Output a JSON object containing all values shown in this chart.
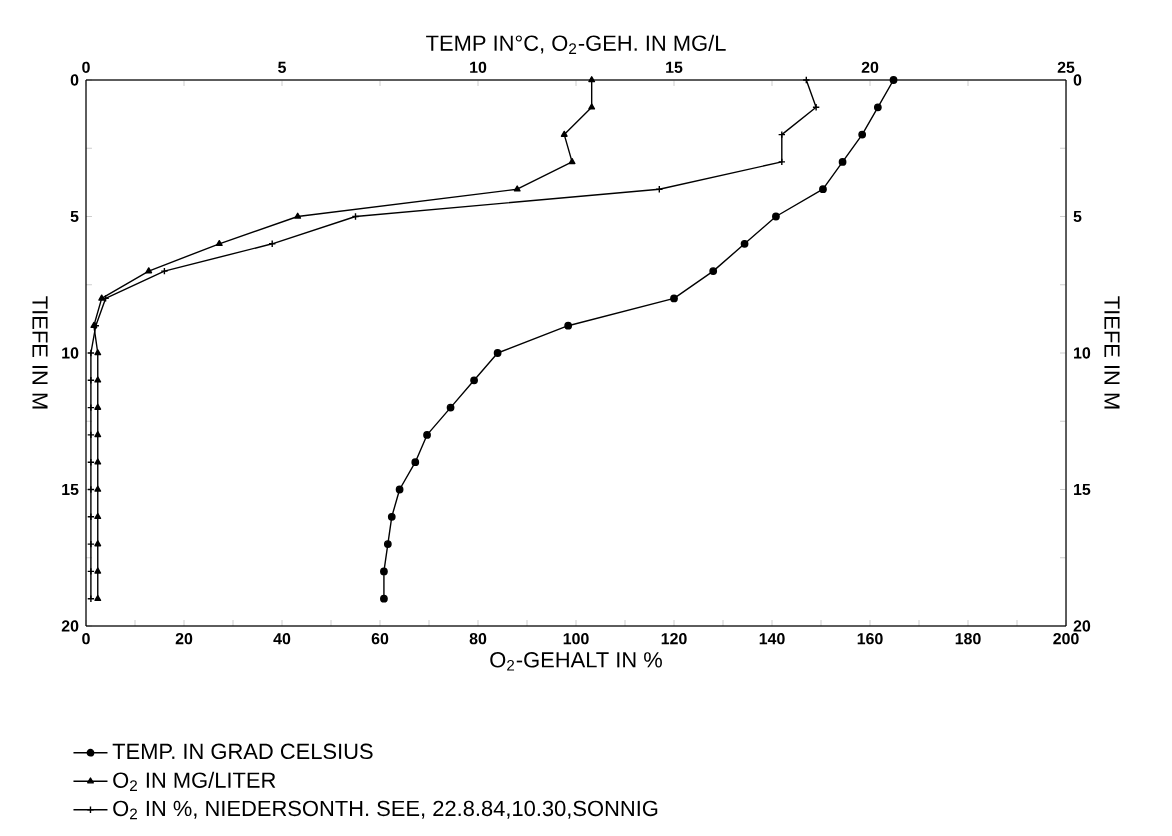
{
  "chart_data": {
    "type": "line",
    "x2label": "TEMP IN°C, O$_{2}$-GEH. IN MG/L",
    "xlabel": "O$_{2}$-GEHALT IN %",
    "ylabel": "TIEFE IN M",
    "y2label": "TIEFE IN M",
    "xlim": [
      0,
      200
    ],
    "xticks": [
      0,
      {
        "value": 10,
        "label": null
      },
      20,
      {
        "value": 30,
        "label": null
      },
      40,
      {
        "value": 50,
        "label": null
      },
      60,
      {
        "value": 70,
        "label": null
      },
      80,
      {
        "value": 90,
        "label": null
      },
      100,
      {
        "value": 110,
        "label": null
      },
      120,
      {
        "value": 130,
        "label": null
      },
      140,
      {
        "value": 150,
        "label": null
      },
      160,
      {
        "value": 170,
        "label": null
      },
      180,
      {
        "value": 190,
        "label": null
      },
      200
    ],
    "x2lim": [
      0,
      25
    ],
    "x2ticks": [
      0,
      {
        "value": 2.5,
        "label": null
      },
      5,
      {
        "value": 7.5,
        "label": null
      },
      10,
      {
        "value": 12.5,
        "label": null
      },
      15,
      {
        "value": 17.5,
        "label": null
      },
      20,
      {
        "value": 22.5,
        "label": null
      },
      25
    ],
    "ylim": [
      20,
      0
    ],
    "yticks": [
      0,
      {
        "value": 2.5,
        "label": null
      },
      5,
      {
        "value": 7.5,
        "label": null
      },
      10,
      {
        "value": 12.5,
        "label": null
      },
      15,
      {
        "value": 17.5,
        "label": null
      },
      20
    ],
    "y2lim": [
      20,
      0
    ],
    "y2ticks": [
      0,
      {
        "value": 2.5,
        "label": null
      },
      5,
      {
        "value": 7.5,
        "label": null
      },
      10,
      {
        "value": 12.5,
        "label": null
      },
      15,
      {
        "value": 17.5,
        "label": null
      },
      20
    ],
    "legend": "bottom",
    "line_style": "solid",
    "series": [
      {
        "name": "TEMP. IN GRAD CELSIUS",
        "color": "#000000",
        "marker": "circle",
        "axis": "x2",
        "x": [
          20.6,
          20.2,
          19.8,
          19.3,
          18.8,
          17.6,
          16.8,
          16.0,
          15.0,
          12.3,
          10.5,
          9.9,
          9.3,
          8.7,
          8.4,
          8.0,
          7.8,
          7.7,
          7.6,
          7.6
        ],
        "values": [
          0,
          1,
          2,
          3,
          4,
          5,
          6,
          7,
          8,
          9,
          10,
          11,
          12,
          13,
          14,
          15,
          16,
          17,
          18,
          19
        ]
      },
      {
        "name": "O$_{2}$ IN MG/LITER",
        "color": "#000000",
        "marker": "triangle",
        "axis": "x2",
        "x": [
          12.9,
          12.9,
          12.2,
          12.4,
          11.0,
          5.4,
          3.4,
          1.6,
          0.4,
          0.2,
          0.3,
          0.3,
          0.3,
          0.3,
          0.3,
          0.3,
          0.3,
          0.3,
          0.3,
          0.3
        ],
        "values": [
          0,
          1,
          2,
          3,
          4,
          5,
          6,
          7,
          8,
          9,
          10,
          11,
          12,
          13,
          14,
          15,
          16,
          17,
          18,
          19
        ]
      },
      {
        "name": "O$_{2}$ IN %, NIEDERSONTH. SEE, 22.8.84,10.30,SONNIG",
        "color": "#000000",
        "marker": "cross",
        "x": [
          147,
          149,
          142,
          142,
          117,
          55,
          38,
          16,
          4,
          2,
          1,
          1,
          1,
          1,
          1,
          1,
          1,
          1,
          1,
          1
        ],
        "values": [
          0,
          1,
          2,
          3,
          4,
          5,
          6,
          7,
          8,
          9,
          10,
          11,
          12,
          13,
          14,
          15,
          16,
          17,
          18,
          19
        ]
      }
    ]
  }
}
